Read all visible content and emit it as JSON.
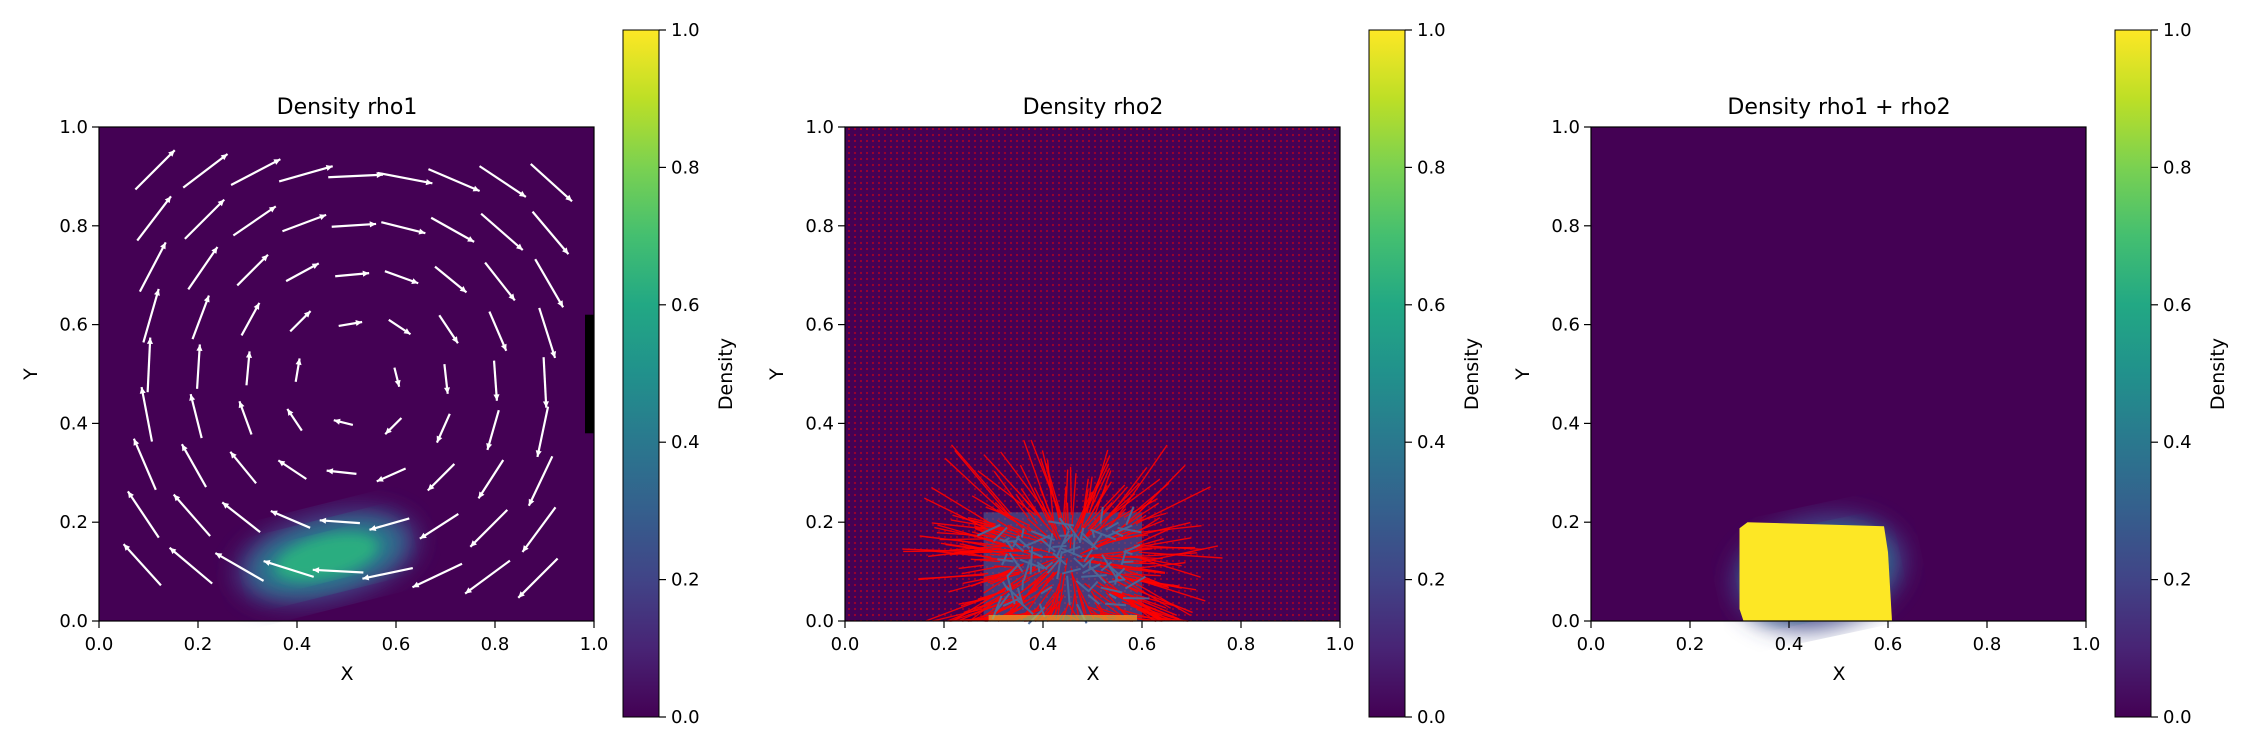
{
  "chart_data": [
    {
      "type": "heatmap",
      "title": "Density rho1",
      "xlabel": "X",
      "ylabel": "Y",
      "xlim": [
        0.0,
        1.0
      ],
      "ylim": [
        0.0,
        1.0
      ],
      "xticks": [
        "0.0",
        "0.2",
        "0.4",
        "0.6",
        "0.8",
        "1.0"
      ],
      "yticks": [
        "0.0",
        "0.2",
        "0.4",
        "0.6",
        "0.8",
        "1.0"
      ],
      "colormap": "viridis",
      "colorbar": {
        "label": "Density",
        "range": [
          0.0,
          1.0
        ],
        "ticks": [
          "0.0",
          "0.2",
          "0.4",
          "0.6",
          "0.8",
          "1.0"
        ]
      },
      "density_blobs": [
        {
          "cx": 0.46,
          "cy": 0.13,
          "sx": 0.15,
          "sy": 0.055,
          "angle_deg": -14,
          "peak": 0.62
        }
      ],
      "vector_field": {
        "kind": "clockwise vortex",
        "center": [
          0.52,
          0.48
        ],
        "grid_x": [
          0.1,
          0.2,
          0.3,
          0.4,
          0.5,
          0.6,
          0.7,
          0.8,
          0.9
        ],
        "grid_y": [
          0.1,
          0.2,
          0.3,
          0.4,
          0.5,
          0.6,
          0.7,
          0.8,
          0.9
        ],
        "arrow_color": "#ffffff"
      },
      "marker": {
        "shape": "black bar",
        "x": 1.0,
        "y_range": [
          0.38,
          0.62
        ]
      }
    },
    {
      "type": "heatmap",
      "title": "Density rho2",
      "xlabel": "X",
      "ylabel": "Y",
      "xlim": [
        0.0,
        1.0
      ],
      "ylim": [
        0.0,
        1.0
      ],
      "xticks": [
        "0.0",
        "0.2",
        "0.4",
        "0.6",
        "0.8",
        "1.0"
      ],
      "yticks": [
        "0.0",
        "0.2",
        "0.4",
        "0.6",
        "0.8",
        "1.0"
      ],
      "colormap": "viridis",
      "colorbar": {
        "label": "Density",
        "range": [
          0.0,
          1.0
        ],
        "ticks": [
          "0.0",
          "0.2",
          "0.4",
          "0.6",
          "0.8",
          "1.0"
        ]
      },
      "overlay": {
        "background_dots": "#c00000",
        "region": {
          "x_range": [
            0.28,
            0.6
          ],
          "y_range": [
            0.0,
            0.22
          ]
        },
        "burst": {
          "center": [
            0.45,
            0.13
          ],
          "radius": 0.15,
          "color": "#ff0000"
        },
        "inner_color": "#4a6a9a"
      }
    },
    {
      "type": "heatmap",
      "title": "Density rho1 + rho2",
      "xlabel": "X",
      "ylabel": "Y",
      "xlim": [
        0.0,
        1.0
      ],
      "ylim": [
        0.0,
        1.0
      ],
      "xticks": [
        "0.0",
        "0.2",
        "0.4",
        "0.6",
        "0.8",
        "1.0"
      ],
      "yticks": [
        "0.0",
        "0.2",
        "0.4",
        "0.6",
        "0.8",
        "1.0"
      ],
      "colormap": "viridis",
      "colorbar": {
        "label": "Density",
        "range": [
          0.0,
          1.0
        ],
        "ticks": [
          "0.0",
          "0.2",
          "0.4",
          "0.6",
          "0.8",
          "1.0"
        ]
      },
      "density_blobs": [
        {
          "cx": 0.46,
          "cy": 0.1,
          "sx": 0.14,
          "sy": 0.07,
          "angle_deg": -12,
          "peak": 0.6
        }
      ],
      "saturated_region": {
        "x_range": [
          0.3,
          0.6
        ],
        "y_range": [
          0.0,
          0.2
        ],
        "value": 1.0
      }
    }
  ]
}
